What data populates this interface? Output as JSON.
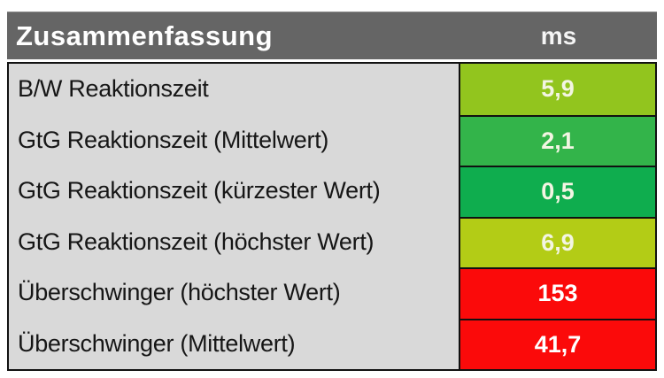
{
  "table": {
    "header": {
      "title": "Zusammenfassung",
      "unit": "ms"
    },
    "rows": [
      {
        "label": "B/W Reaktionszeit",
        "value": "5,9",
        "cell_color": "#92C51E",
        "text_color": "#F3F5E3"
      },
      {
        "label": "GtG Reaktionszeit (Mittelwert)",
        "value": "2,1",
        "cell_color": "#33B44A",
        "text_color": "#F3F5E3"
      },
      {
        "label": "GtG Reaktionszeit (kürzester Wert)",
        "value": "0,5",
        "cell_color": "#0FAD4E",
        "text_color": "#F3F5E3"
      },
      {
        "label": "GtG Reaktionszeit (höchster Wert)",
        "value": "6,9",
        "cell_color": "#B3CC16",
        "text_color": "#F3F5E3"
      },
      {
        "label": "Überschwinger (höchster Wert)",
        "value": "153",
        "cell_color": "#FB0A0A",
        "text_color": "#FFFFFF"
      },
      {
        "label": "Überschwinger (Mittelwert)",
        "value": "41,7",
        "cell_color": "#FB0A0A",
        "text_color": "#FFFFFF"
      }
    ],
    "colors": {
      "header_background": "#656565",
      "header_text": "#FFFFFF",
      "label_background": "#D9D9D9",
      "label_text": "#161616",
      "border": "#111111"
    }
  }
}
